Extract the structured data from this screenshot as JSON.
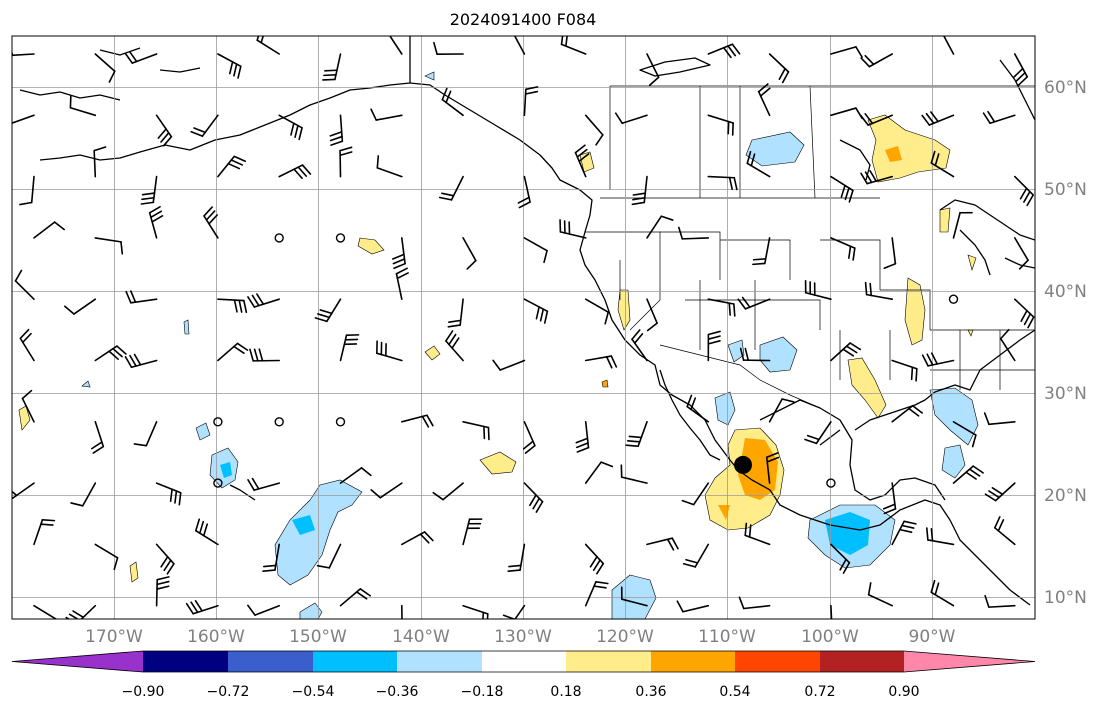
{
  "title": "2024091400 F084",
  "lat_labels": [
    "60°N",
    "50°N",
    "40°N",
    "30°N",
    "20°N",
    "10°N"
  ],
  "lon_labels": [
    "170°W",
    "160°W",
    "150°W",
    "140°W",
    "130°W",
    "120°W",
    "110°W",
    "100°W",
    "90°W"
  ],
  "colorbar": {
    "colors": [
      "#9932cc",
      "#000080",
      "#3a5fcd",
      "#00bfff",
      "#b0e2ff",
      "#ffffff",
      "#ffec8b",
      "#ffa500",
      "#ff4500",
      "#b22222",
      "#ff88aa"
    ],
    "labels": [
      "−0.90",
      "−0.72",
      "−0.54",
      "−0.36",
      "−0.18",
      "0.18",
      "0.36",
      "0.54",
      "0.72",
      "0.90"
    ]
  },
  "marker": {
    "lon": -108.5,
    "lat": 23.0
  }
}
